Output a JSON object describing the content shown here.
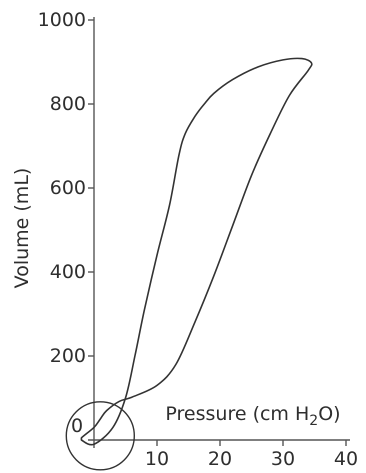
{
  "chart_data": {
    "type": "line",
    "title": "",
    "xlabel": {
      "prefix": "Pressure (cm H",
      "sub": "2",
      "suffix": "O)"
    },
    "ylabel": "Volume (mL)",
    "xlim": [
      0,
      40
    ],
    "ylim": [
      0,
      1000
    ],
    "x_ticks": [
      10,
      20,
      30,
      40
    ],
    "x_tick_labels": [
      "10",
      "20",
      "30",
      "40"
    ],
    "y_ticks": [
      200,
      400,
      600,
      800,
      1000
    ],
    "y_tick_labels": [
      "200",
      "400",
      "600",
      "800",
      "1000"
    ],
    "origin_label": "0",
    "grid": false,
    "legend": "none",
    "annotations": [
      {
        "type": "circle",
        "center": {
          "x": 1,
          "y": 10
        },
        "note": "circled region near origin"
      }
    ],
    "series": [
      {
        "kind": "closed-loop",
        "color": "#333333",
        "points": [
          {
            "x": -2,
            "y": 5
          },
          {
            "x": 0,
            "y": 30
          },
          {
            "x": 1,
            "y": 50
          },
          {
            "x": 2,
            "y": 70
          },
          {
            "x": 4,
            "y": 92
          },
          {
            "x": 6,
            "y": 102
          },
          {
            "x": 10,
            "y": 130
          },
          {
            "x": 13,
            "y": 180
          },
          {
            "x": 16,
            "y": 280
          },
          {
            "x": 19,
            "y": 390
          },
          {
            "x": 22,
            "y": 510
          },
          {
            "x": 25,
            "y": 630
          },
          {
            "x": 28,
            "y": 730
          },
          {
            "x": 31,
            "y": 820
          },
          {
            "x": 34,
            "y": 880
          },
          {
            "x": 34.5,
            "y": 898
          },
          {
            "x": 33,
            "y": 908
          },
          {
            "x": 30,
            "y": 905
          },
          {
            "x": 26,
            "y": 888
          },
          {
            "x": 22,
            "y": 858
          },
          {
            "x": 19,
            "y": 825
          },
          {
            "x": 17.5,
            "y": 800
          },
          {
            "x": 16,
            "y": 770
          },
          {
            "x": 14.5,
            "y": 730
          },
          {
            "x": 13.5,
            "y": 680
          },
          {
            "x": 12,
            "y": 560
          },
          {
            "x": 10,
            "y": 440
          },
          {
            "x": 8,
            "y": 310
          },
          {
            "x": 6.5,
            "y": 200
          },
          {
            "x": 5,
            "y": 100
          },
          {
            "x": 3,
            "y": 30
          },
          {
            "x": 0,
            "y": -10
          },
          {
            "x": -2,
            "y": 0
          }
        ]
      }
    ]
  }
}
